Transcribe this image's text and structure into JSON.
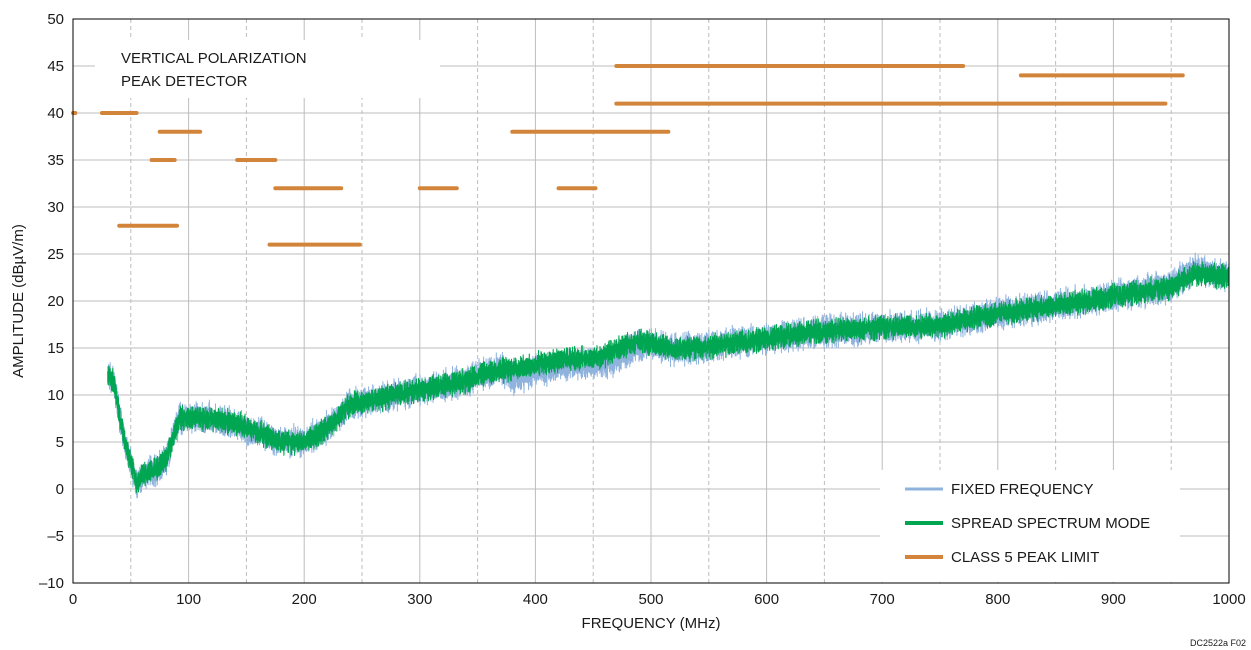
{
  "chart_data": {
    "type": "line",
    "xlabel": "FREQUENCY (MHz)",
    "ylabel": "AMPLITUDE (dBµV/m)",
    "xlim": [
      0,
      1000
    ],
    "ylim": [
      -10,
      50
    ],
    "x_ticks": [
      0,
      100,
      200,
      300,
      400,
      500,
      600,
      700,
      800,
      900,
      1000
    ],
    "x_tick_labels": [
      "0",
      "100",
      "200",
      "300",
      "400",
      "500",
      "600",
      "700",
      "800",
      "900",
      "1000"
    ],
    "y_ticks": [
      -10,
      -5,
      0,
      5,
      10,
      15,
      20,
      25,
      30,
      35,
      40,
      45,
      50
    ],
    "y_tick_labels": [
      "–10",
      "–5",
      "0",
      "5",
      "10",
      "15",
      "20",
      "25",
      "30",
      "35",
      "40",
      "45",
      "50"
    ],
    "x_minor_dashed_gridlines": [
      50,
      150,
      250,
      350,
      450,
      550,
      650,
      750,
      850,
      950
    ],
    "grid": true,
    "annotation_lines": [
      "VERTICAL POLARIZATION",
      "PEAK DETECTOR"
    ],
    "figure_id": "DC2522a F02",
    "legend_position": "bottom-right",
    "series": [
      {
        "name": "FIXED FREQUENCY",
        "color": "#8fb3dd",
        "noise_db": 1.6,
        "x": [
          30,
          35,
          40,
          45,
          50,
          55,
          60,
          70,
          80,
          88,
          92,
          100,
          120,
          140,
          160,
          180,
          190,
          200,
          220,
          240,
          260,
          300,
          340,
          360,
          370,
          380,
          400,
          420,
          450,
          460,
          470,
          480,
          490,
          500,
          520,
          550,
          600,
          650,
          700,
          750,
          800,
          850,
          900,
          950,
          970,
          1000
        ],
        "y": [
          12,
          11.5,
          8,
          5,
          3,
          0.5,
          1.5,
          2,
          3,
          6,
          7.5,
          7.5,
          7.5,
          7,
          6,
          5,
          5,
          5,
          6.5,
          9,
          9.5,
          10.5,
          11.5,
          12.5,
          13,
          11.8,
          12.5,
          13,
          13.3,
          13.5,
          13.8,
          14.5,
          15.2,
          15.5,
          14.8,
          15.2,
          16,
          16.8,
          17.2,
          17.4,
          18.7,
          19.5,
          20.5,
          21.5,
          23.5,
          22.5
        ]
      },
      {
        "name": "SPREAD SPECTRUM MODE",
        "color": "#00a651",
        "noise_db": 1.2,
        "x": [
          30,
          35,
          40,
          45,
          50,
          55,
          60,
          70,
          80,
          88,
          92,
          100,
          120,
          140,
          160,
          180,
          190,
          200,
          220,
          240,
          260,
          300,
          340,
          360,
          380,
          400,
          420,
          450,
          460,
          470,
          480,
          490,
          500,
          520,
          550,
          600,
          650,
          700,
          750,
          800,
          850,
          900,
          950,
          970,
          1000
        ],
        "y": [
          12,
          11.5,
          8,
          5,
          3,
          0.5,
          1.5,
          2,
          3,
          6,
          7.5,
          7.5,
          7.5,
          7,
          6,
          5,
          5,
          5,
          6.5,
          9,
          9.5,
          10.5,
          11.5,
          12.5,
          12.8,
          13.2,
          13.7,
          14,
          14.3,
          14.8,
          15.3,
          15.7,
          15.5,
          14.8,
          15.2,
          16,
          16.8,
          17.2,
          17.4,
          18.7,
          19.5,
          20.5,
          21.5,
          23,
          22.5
        ]
      },
      {
        "name": "CLASS 5 PEAK LIMIT",
        "color": "#d2853a",
        "segments": [
          {
            "x": [
              0,
              2
            ],
            "y": 40
          },
          {
            "x": [
              25,
              55
            ],
            "y": 40
          },
          {
            "x": [
              75,
              110
            ],
            "y": 38
          },
          {
            "x": [
              68,
              88
            ],
            "y": 35
          },
          {
            "x": [
              40,
              90
            ],
            "y": 28
          },
          {
            "x": [
              142,
              175
            ],
            "y": 35
          },
          {
            "x": [
              175,
              232
            ],
            "y": 32
          },
          {
            "x": [
              170,
              248
            ],
            "y": 26
          },
          {
            "x": [
              300,
              332
            ],
            "y": 32
          },
          {
            "x": [
              380,
              515
            ],
            "y": 38
          },
          {
            "x": [
              420,
              452
            ],
            "y": 32
          },
          {
            "x": [
              470,
              770
            ],
            "y": 45
          },
          {
            "x": [
              470,
              945
            ],
            "y": 41
          },
          {
            "x": [
              820,
              960
            ],
            "y": 44
          }
        ]
      }
    ]
  }
}
